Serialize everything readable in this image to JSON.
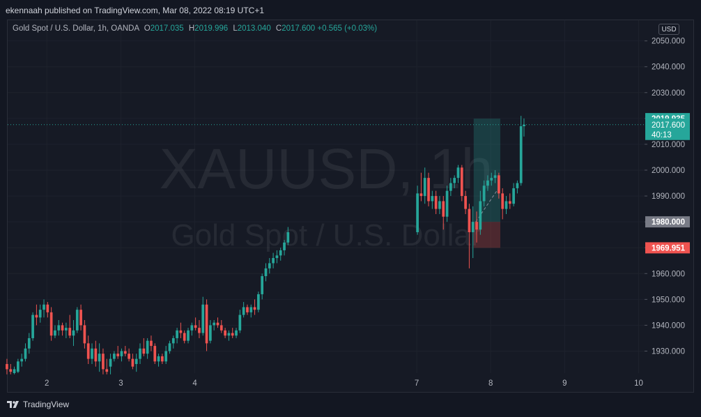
{
  "header": {
    "publisher_text": "ekennaah published on TradingView.com, Mar 08, 2022 08:19 UTC+1"
  },
  "legend": {
    "title": "Gold Spot / U.S. Dollar, 1h, OANDA",
    "o_label": "O",
    "o_value": "2017.035",
    "h_label": "H",
    "h_value": "2019.996",
    "l_label": "L",
    "l_value": "2013.040",
    "c_label": "C",
    "c_value": "2017.600",
    "change": "+0.565 (+0.03%)"
  },
  "currency": "USD",
  "watermark": {
    "symbol": "XAUUSD, 1h",
    "name": "Gold Spot / U.S. Dollar"
  },
  "footer": {
    "brand": "TradingView"
  },
  "colors": {
    "up": "#26a69a",
    "down": "#ef5350",
    "bg": "#131722",
    "grid": "#1e222d",
    "label_grey": "#787b86",
    "target_zone": "#1b4b4c",
    "stop_zone": "#4a2326"
  },
  "chart_data": {
    "type": "candlestick",
    "symbol": "XAUUSD",
    "interval": "1h",
    "y_ticks": [
      1930,
      1940,
      1950,
      1960,
      1970,
      1980,
      1990,
      2000,
      2010,
      2020,
      2030,
      2040,
      2050
    ],
    "y_tick_labels": [
      "1930.000",
      "1940.000",
      "1950.000",
      "1960.000",
      "1970.000",
      "1980.000",
      "1990.000",
      "2000.000",
      "2010.000",
      "2020.000",
      "2030.000",
      "2040.000",
      "2050.000"
    ],
    "ylim": [
      1921.5,
      2058
    ],
    "x_ticks": [
      2,
      3,
      4,
      7,
      8,
      9,
      10
    ],
    "x_tick_labels": [
      "2",
      "3",
      "4",
      "7",
      "8",
      "9",
      "10"
    ],
    "current_price": 2017.6,
    "price_labels": [
      {
        "value": 2019.935,
        "label": "2019.935",
        "kind": "target"
      },
      {
        "value": 2017.6,
        "label": "2017.600",
        "sub": "40:13",
        "kind": "last"
      },
      {
        "value": 1980.0,
        "label": "1980.000",
        "kind": "entry"
      },
      {
        "value": 1969.951,
        "label": "1969.951",
        "kind": "stop"
      }
    ],
    "position": {
      "entry": 1980.0,
      "target": 2019.935,
      "stop": 1969.951,
      "start_x": 7.77,
      "end_x": 8.13
    },
    "candles": [
      {
        "x": 1.46,
        "o": 1925.0,
        "h": 1927.0,
        "l": 1921.0,
        "c": 1923.0
      },
      {
        "x": 1.51,
        "o": 1923.0,
        "h": 1925.0,
        "l": 1921.0,
        "c": 1922.0
      },
      {
        "x": 1.56,
        "o": 1921.5,
        "h": 1924.0,
        "l": 1921.0,
        "c": 1923.0
      },
      {
        "x": 1.61,
        "o": 1922.0,
        "h": 1927.0,
        "l": 1921.5,
        "c": 1926.0
      },
      {
        "x": 1.66,
        "o": 1926.0,
        "h": 1929.0,
        "l": 1924.0,
        "c": 1927.0
      },
      {
        "x": 1.71,
        "o": 1927.0,
        "h": 1933.0,
        "l": 1926.0,
        "c": 1931.0
      },
      {
        "x": 1.76,
        "o": 1931.0,
        "h": 1937.0,
        "l": 1929.0,
        "c": 1935.0
      },
      {
        "x": 1.81,
        "o": 1935.0,
        "h": 1945.0,
        "l": 1934.0,
        "c": 1944.0
      },
      {
        "x": 1.86,
        "o": 1944.0,
        "h": 1948.0,
        "l": 1940.0,
        "c": 1943.0
      },
      {
        "x": 1.91,
        "o": 1943.0,
        "h": 1948.0,
        "l": 1941.0,
        "c": 1946.0
      },
      {
        "x": 1.96,
        "o": 1946.0,
        "h": 1950.0,
        "l": 1943.0,
        "c": 1948.0
      },
      {
        "x": 2.01,
        "o": 1948.0,
        "h": 1949.0,
        "l": 1943.0,
        "c": 1945.0
      },
      {
        "x": 2.06,
        "o": 1945.0,
        "h": 1947.0,
        "l": 1934.0,
        "c": 1936.0
      },
      {
        "x": 2.11,
        "o": 1936.0,
        "h": 1940.0,
        "l": 1935.0,
        "c": 1938.0
      },
      {
        "x": 2.16,
        "o": 1938.0,
        "h": 1942.0,
        "l": 1936.0,
        "c": 1940.0
      },
      {
        "x": 2.21,
        "o": 1940.0,
        "h": 1941.0,
        "l": 1936.0,
        "c": 1938.0
      },
      {
        "x": 2.26,
        "o": 1938.0,
        "h": 1941.0,
        "l": 1935.0,
        "c": 1939.0
      },
      {
        "x": 2.31,
        "o": 1939.0,
        "h": 1944.0,
        "l": 1935.0,
        "c": 1936.0
      },
      {
        "x": 2.36,
        "o": 1936.0,
        "h": 1942.0,
        "l": 1932.0,
        "c": 1938.0
      },
      {
        "x": 2.41,
        "o": 1938.0,
        "h": 1947.0,
        "l": 1937.0,
        "c": 1946.0
      },
      {
        "x": 2.46,
        "o": 1946.0,
        "h": 1948.0,
        "l": 1938.0,
        "c": 1940.0
      },
      {
        "x": 2.51,
        "o": 1940.0,
        "h": 1942.0,
        "l": 1931.0,
        "c": 1933.0
      },
      {
        "x": 2.56,
        "o": 1933.0,
        "h": 1936.0,
        "l": 1925.0,
        "c": 1927.0
      },
      {
        "x": 2.61,
        "o": 1927.0,
        "h": 1933.0,
        "l": 1925.0,
        "c": 1931.0
      },
      {
        "x": 2.66,
        "o": 1931.0,
        "h": 1934.0,
        "l": 1924.0,
        "c": 1926.0
      },
      {
        "x": 2.71,
        "o": 1926.0,
        "h": 1933.0,
        "l": 1922.0,
        "c": 1929.0
      },
      {
        "x": 2.76,
        "o": 1929.0,
        "h": 1931.0,
        "l": 1921.0,
        "c": 1923.0
      },
      {
        "x": 2.81,
        "o": 1923.0,
        "h": 1927.0,
        "l": 1921.0,
        "c": 1922.0
      },
      {
        "x": 2.86,
        "o": 1924.0,
        "h": 1929.0,
        "l": 1921.0,
        "c": 1927.0
      },
      {
        "x": 2.91,
        "o": 1927.0,
        "h": 1930.0,
        "l": 1926.0,
        "c": 1929.0
      },
      {
        "x": 2.96,
        "o": 1929.0,
        "h": 1932.0,
        "l": 1927.0,
        "c": 1928.0
      },
      {
        "x": 3.01,
        "o": 1928.0,
        "h": 1931.0,
        "l": 1926.0,
        "c": 1930.0
      },
      {
        "x": 3.06,
        "o": 1930.0,
        "h": 1932.0,
        "l": 1928.0,
        "c": 1929.0
      },
      {
        "x": 3.11,
        "o": 1929.0,
        "h": 1931.0,
        "l": 1926.0,
        "c": 1927.0
      },
      {
        "x": 3.16,
        "o": 1927.0,
        "h": 1929.0,
        "l": 1923.0,
        "c": 1924.0
      },
      {
        "x": 3.21,
        "o": 1925.0,
        "h": 1929.0,
        "l": 1922.0,
        "c": 1927.0
      },
      {
        "x": 3.26,
        "o": 1927.0,
        "h": 1933.0,
        "l": 1925.0,
        "c": 1931.0
      },
      {
        "x": 3.31,
        "o": 1931.0,
        "h": 1935.0,
        "l": 1928.0,
        "c": 1929.0
      },
      {
        "x": 3.36,
        "o": 1929.0,
        "h": 1935.0,
        "l": 1927.0,
        "c": 1934.0
      },
      {
        "x": 3.41,
        "o": 1934.0,
        "h": 1936.0,
        "l": 1930.0,
        "c": 1932.0
      },
      {
        "x": 3.46,
        "o": 1932.0,
        "h": 1933.0,
        "l": 1925.0,
        "c": 1926.0
      },
      {
        "x": 3.51,
        "o": 1926.0,
        "h": 1929.0,
        "l": 1924.0,
        "c": 1928.0
      },
      {
        "x": 3.56,
        "o": 1928.0,
        "h": 1929.0,
        "l": 1925.0,
        "c": 1926.0
      },
      {
        "x": 3.61,
        "o": 1926.0,
        "h": 1932.0,
        "l": 1925.0,
        "c": 1930.0
      },
      {
        "x": 3.66,
        "o": 1930.0,
        "h": 1934.0,
        "l": 1929.0,
        "c": 1933.0
      },
      {
        "x": 3.71,
        "o": 1933.0,
        "h": 1936.0,
        "l": 1931.0,
        "c": 1935.0
      },
      {
        "x": 3.76,
        "o": 1935.0,
        "h": 1939.0,
        "l": 1933.0,
        "c": 1938.0
      },
      {
        "x": 3.81,
        "o": 1938.0,
        "h": 1941.0,
        "l": 1935.0,
        "c": 1937.0
      },
      {
        "x": 3.86,
        "o": 1937.0,
        "h": 1938.0,
        "l": 1933.0,
        "c": 1934.0
      },
      {
        "x": 3.91,
        "o": 1934.0,
        "h": 1939.0,
        "l": 1933.0,
        "c": 1938.0
      },
      {
        "x": 3.96,
        "o": 1938.0,
        "h": 1941.0,
        "l": 1936.0,
        "c": 1940.0
      },
      {
        "x": 4.01,
        "o": 1940.0,
        "h": 1943.0,
        "l": 1938.0,
        "c": 1939.0
      },
      {
        "x": 4.06,
        "o": 1939.0,
        "h": 1942.0,
        "l": 1935.0,
        "c": 1937.0
      },
      {
        "x": 4.11,
        "o": 1937.0,
        "h": 1951.0,
        "l": 1936.0,
        "c": 1948.0
      },
      {
        "x": 4.16,
        "o": 1948.0,
        "h": 1950.0,
        "l": 1930.0,
        "c": 1933.0
      },
      {
        "x": 4.21,
        "o": 1934.0,
        "h": 1942.0,
        "l": 1933.0,
        "c": 1940.0
      },
      {
        "x": 4.26,
        "o": 1940.0,
        "h": 1942.0,
        "l": 1938.0,
        "c": 1941.0
      },
      {
        "x": 4.31,
        "o": 1941.0,
        "h": 1943.0,
        "l": 1939.0,
        "c": 1940.0
      },
      {
        "x": 4.36,
        "o": 1940.0,
        "h": 1942.0,
        "l": 1937.0,
        "c": 1938.0
      },
      {
        "x": 4.41,
        "o": 1938.0,
        "h": 1939.0,
        "l": 1935.0,
        "c": 1936.0
      },
      {
        "x": 4.46,
        "o": 1936.0,
        "h": 1938.0,
        "l": 1934.0,
        "c": 1937.0
      },
      {
        "x": 4.51,
        "o": 1937.0,
        "h": 1939.0,
        "l": 1935.0,
        "c": 1936.0
      },
      {
        "x": 4.56,
        "o": 1936.0,
        "h": 1939.0,
        "l": 1935.0,
        "c": 1938.0
      },
      {
        "x": 4.61,
        "o": 1938.0,
        "h": 1946.0,
        "l": 1937.0,
        "c": 1944.0
      },
      {
        "x": 4.66,
        "o": 1944.0,
        "h": 1949.0,
        "l": 1943.0,
        "c": 1947.0
      },
      {
        "x": 4.71,
        "o": 1947.0,
        "h": 1948.0,
        "l": 1944.0,
        "c": 1945.0
      },
      {
        "x": 4.76,
        "o": 1945.0,
        "h": 1948.0,
        "l": 1943.0,
        "c": 1947.0
      },
      {
        "x": 4.81,
        "o": 1947.0,
        "h": 1950.0,
        "l": 1944.0,
        "c": 1946.0
      },
      {
        "x": 4.86,
        "o": 1946.0,
        "h": 1953.0,
        "l": 1945.0,
        "c": 1952.0
      },
      {
        "x": 4.91,
        "o": 1952.0,
        "h": 1960.0,
        "l": 1950.0,
        "c": 1959.0
      },
      {
        "x": 4.96,
        "o": 1959.0,
        "h": 1964.0,
        "l": 1957.0,
        "c": 1962.0
      },
      {
        "x": 5.01,
        "o": 1962.0,
        "h": 1966.0,
        "l": 1960.0,
        "c": 1964.0
      },
      {
        "x": 5.06,
        "o": 1964.0,
        "h": 1968.0,
        "l": 1962.0,
        "c": 1966.0
      },
      {
        "x": 5.11,
        "o": 1966.0,
        "h": 1969.0,
        "l": 1964.0,
        "c": 1967.0
      },
      {
        "x": 5.16,
        "o": 1967.0,
        "h": 1970.0,
        "l": 1965.0,
        "c": 1969.0
      },
      {
        "x": 5.21,
        "o": 1969.0,
        "h": 1973.0,
        "l": 1967.0,
        "c": 1972.0
      },
      {
        "x": 5.26,
        "o": 1972.0,
        "h": 1978.0,
        "l": 1971.0,
        "c": 1976.0
      },
      {
        "x": 7.01,
        "o": 1976.0,
        "h": 1994.0,
        "l": 1975.0,
        "c": 1991.0
      },
      {
        "x": 7.06,
        "o": 1991.0,
        "h": 1999.0,
        "l": 1988.0,
        "c": 1990.0
      },
      {
        "x": 7.11,
        "o": 1990.0,
        "h": 2001.0,
        "l": 1987.0,
        "c": 1997.0
      },
      {
        "x": 7.16,
        "o": 1997.0,
        "h": 1999.0,
        "l": 1986.0,
        "c": 1988.0
      },
      {
        "x": 7.21,
        "o": 1988.0,
        "h": 1992.0,
        "l": 1985.0,
        "c": 1990.0
      },
      {
        "x": 7.26,
        "o": 1990.0,
        "h": 1992.0,
        "l": 1983.0,
        "c": 1985.0
      },
      {
        "x": 7.31,
        "o": 1985.0,
        "h": 1990.0,
        "l": 1983.0,
        "c": 1988.0
      },
      {
        "x": 7.36,
        "o": 1988.0,
        "h": 1990.0,
        "l": 1977.0,
        "c": 1982.0
      },
      {
        "x": 7.41,
        "o": 1982.0,
        "h": 1994.0,
        "l": 1980.0,
        "c": 1992.0
      },
      {
        "x": 7.46,
        "o": 1992.0,
        "h": 1997.0,
        "l": 1990.0,
        "c": 1995.0
      },
      {
        "x": 7.51,
        "o": 1995.0,
        "h": 1998.0,
        "l": 1993.0,
        "c": 1997.0
      },
      {
        "x": 7.56,
        "o": 1997.0,
        "h": 2002.0,
        "l": 1995.0,
        "c": 2001.0
      },
      {
        "x": 7.61,
        "o": 2001.0,
        "h": 2002.0,
        "l": 1988.0,
        "c": 1990.0
      },
      {
        "x": 7.66,
        "o": 1990.0,
        "h": 1992.0,
        "l": 1983.0,
        "c": 1985.0
      },
      {
        "x": 7.71,
        "o": 1985.0,
        "h": 1987.0,
        "l": 1962.0,
        "c": 1976.0
      },
      {
        "x": 7.76,
        "o": 1976.0,
        "h": 1986.0,
        "l": 1966.0,
        "c": 1980.0
      },
      {
        "x": 7.81,
        "o": 1980.0,
        "h": 1984.0,
        "l": 1972.0,
        "c": 1977.0
      },
      {
        "x": 7.86,
        "o": 1977.0,
        "h": 1992.0,
        "l": 1975.0,
        "c": 1988.0
      },
      {
        "x": 7.91,
        "o": 1988.0,
        "h": 1996.0,
        "l": 1986.0,
        "c": 1994.0
      },
      {
        "x": 7.96,
        "o": 1994.0,
        "h": 1998.0,
        "l": 1992.0,
        "c": 1996.0
      },
      {
        "x": 8.01,
        "o": 1996.0,
        "h": 1999.0,
        "l": 1994.0,
        "c": 1997.0
      },
      {
        "x": 8.06,
        "o": 1997.0,
        "h": 2000.0,
        "l": 1995.0,
        "c": 1998.0
      },
      {
        "x": 8.11,
        "o": 1998.0,
        "h": 1999.0,
        "l": 1989.0,
        "c": 1991.0
      },
      {
        "x": 8.16,
        "o": 1991.0,
        "h": 1993.0,
        "l": 1981.0,
        "c": 1985.0
      },
      {
        "x": 8.21,
        "o": 1985.0,
        "h": 1990.0,
        "l": 1983.0,
        "c": 1988.0
      },
      {
        "x": 8.26,
        "o": 1988.0,
        "h": 1991.0,
        "l": 1985.0,
        "c": 1987.0
      },
      {
        "x": 8.31,
        "o": 1987.0,
        "h": 1995.0,
        "l": 1986.0,
        "c": 1993.0
      },
      {
        "x": 8.36,
        "o": 1993.0,
        "h": 1996.0,
        "l": 1991.0,
        "c": 1995.0
      },
      {
        "x": 8.41,
        "o": 1995.0,
        "h": 2021.0,
        "l": 1994.0,
        "c": 2017.0
      },
      {
        "x": 8.45,
        "o": 2017.0,
        "h": 2020.0,
        "l": 2013.0,
        "c": 2017.6
      }
    ]
  }
}
